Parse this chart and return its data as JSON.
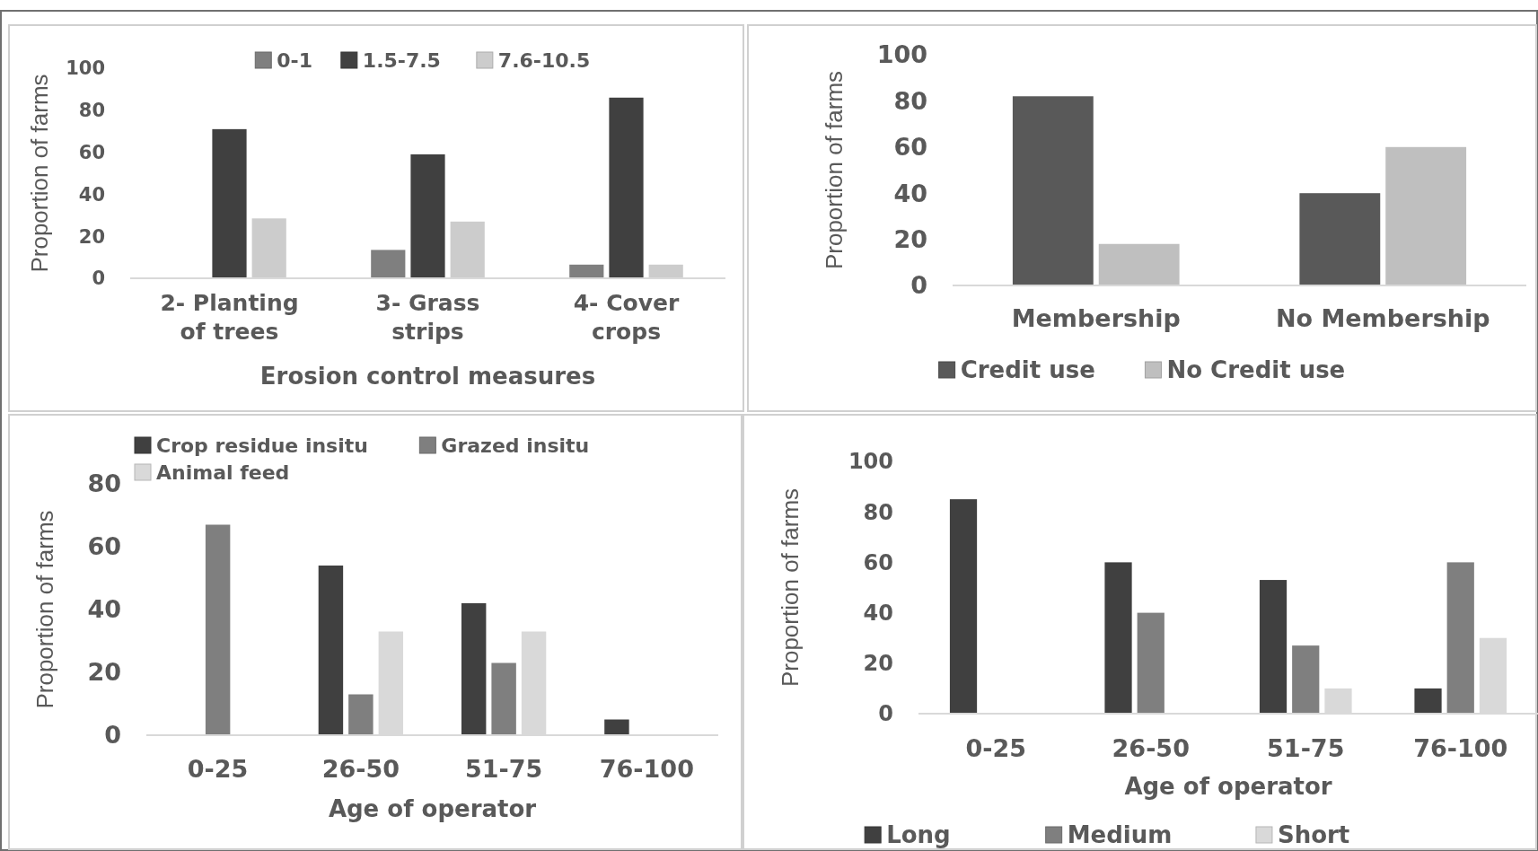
{
  "chart_data": [
    {
      "type": "bar",
      "categories": [
        "2- Planting of trees",
        "3- Grass strips",
        "4- Cover crops"
      ],
      "xlabel": "Erosion control measures",
      "ylabel": "Proportion of farms",
      "ylim": [
        0,
        100
      ],
      "yticks": [
        0,
        20,
        40,
        60,
        80,
        100
      ],
      "legend": "top",
      "series": [
        {
          "name": "0-1",
          "color": "#7f7f7f",
          "values": [
            0,
            13.5,
            6.5
          ]
        },
        {
          "name": "1.5-7.5",
          "color": "#404040",
          "values": [
            71,
            59,
            86
          ]
        },
        {
          "name": "7.6-10.5",
          "color": "#cccccc",
          "values": [
            28.5,
            27,
            6.5
          ]
        }
      ]
    },
    {
      "type": "bar",
      "categories": [
        "Membership",
        "No Membership"
      ],
      "ylabel": "Proportion of farms",
      "ylim": [
        0,
        100
      ],
      "yticks": [
        0,
        20,
        40,
        60,
        80,
        100
      ],
      "legend": "bottom",
      "series": [
        {
          "name": "Credit use",
          "color": "#595959",
          "values": [
            82,
            40
          ]
        },
        {
          "name": "No Credit use",
          "color": "#bfbfbf",
          "values": [
            18,
            60
          ]
        }
      ]
    },
    {
      "type": "bar",
      "categories": [
        "0-25",
        "26-50",
        "51-75",
        "76-100"
      ],
      "xlabel": "Age of operator",
      "ylabel": "Proportion of farms",
      "ylim": [
        0,
        80
      ],
      "yticks": [
        0,
        20,
        40,
        60,
        80
      ],
      "legend": "top",
      "series": [
        {
          "name": "Crop residue insitu",
          "color": "#404040",
          "values": [
            0,
            54,
            42,
            5
          ]
        },
        {
          "name": "Grazed insitu",
          "color": "#7f7f7f",
          "values": [
            67,
            13,
            23,
            0
          ]
        },
        {
          "name": "Animal feed",
          "color": "#d9d9d9",
          "values": [
            0,
            33,
            33,
            0
          ]
        }
      ]
    },
    {
      "type": "bar",
      "categories": [
        "0-25",
        "26-50",
        "51-75",
        "76-100"
      ],
      "xlabel": "Age of operator",
      "ylabel": "Proportion of farms",
      "ylim": [
        0,
        100
      ],
      "yticks": [
        0,
        20,
        40,
        60,
        80,
        100
      ],
      "legend": "bottom",
      "series": [
        {
          "name": "Long",
          "color": "#404040",
          "values": [
            85,
            60,
            53,
            10
          ]
        },
        {
          "name": "Medium",
          "color": "#7f7f7f",
          "values": [
            0,
            40,
            27,
            60
          ]
        },
        {
          "name": "Short",
          "color": "#d9d9d9",
          "values": [
            0,
            0,
            10,
            30
          ]
        }
      ]
    }
  ]
}
